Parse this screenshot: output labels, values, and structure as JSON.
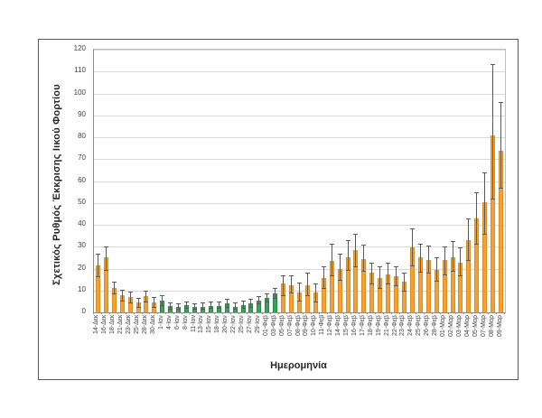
{
  "figure": {
    "y_axis_title": "Σχετικός Ρυθμός Έκκρισης Ιικού Φορτίου",
    "x_axis_title": "Ημερομηνία"
  },
  "chart_data": {
    "type": "bar",
    "title": "",
    "ylabel": "Σχετικός Ρυθμός Έκκρισης Ιικού Φορτίου",
    "xlabel": "Ημερομηνία",
    "ylim": [
      0,
      120
    ],
    "ytick_step": 10,
    "yticks": [
      0,
      10,
      20,
      30,
      40,
      50,
      60,
      70,
      80,
      90,
      100,
      110,
      120
    ],
    "grid": true,
    "legend": "none",
    "error_bars": true,
    "series_colors": {
      "orange": "#f2a136",
      "green": "#35a656"
    },
    "categories": [
      "14-Δεκ",
      "16-Δεκ",
      "18-Δεκ",
      "21-Δεκ",
      "23-Δεκ",
      "25-Δεκ",
      "28-Δεκ",
      "30-Δεκ",
      "1-Ιαν",
      "4-Ιαν",
      "6-Ιαν",
      "8-Ιαν",
      "11-Ιαν",
      "13-Ιαν",
      "15-Ιαν",
      "18-Ιαν",
      "20-Ιαν",
      "22-Ιαν",
      "25-Ιαν",
      "27-Ιαν",
      "29-Ιαν",
      "01-Φεβ",
      "03-Φεβ",
      "05-Φεβ",
      "07-Φεβ",
      "08-Φεβ",
      "09-Φεβ",
      "10-Φεβ",
      "11-Φεβ",
      "12-Φεβ",
      "14-Φεβ",
      "15-Φεβ",
      "16-Φεβ",
      "17-Φεβ",
      "18-Φεβ",
      "19-Φεβ",
      "21-Φεβ",
      "22-Φεβ",
      "23-Φεβ",
      "24-Φεβ",
      "25-Φεβ",
      "26-Φεβ",
      "28-Φεβ",
      "01-Μαρ",
      "02-Μαρ",
      "03-Μαρ",
      "04-Μαρ",
      "05-Μαρ",
      "07-Μαρ",
      "08-Μαρ",
      "09-Μαρ"
    ],
    "values": [
      21.5,
      25,
      11,
      8,
      7,
      4.5,
      7.5,
      4.5,
      5.5,
      3,
      2.5,
      3.5,
      2.5,
      2.5,
      3,
      3,
      4,
      2.5,
      3.5,
      4,
      5.5,
      6.5,
      8.5,
      13,
      12.5,
      9,
      12.5,
      9,
      15.5,
      23.5,
      20,
      25,
      28.5,
      24.5,
      18,
      15.5,
      17.5,
      16.5,
      14,
      29.5,
      25,
      24,
      19.5,
      24,
      25,
      22.5,
      33,
      43,
      50.5,
      81,
      74
    ],
    "error_low": [
      16.5,
      19.5,
      8.5,
      5.5,
      4.5,
      2.5,
      5,
      2.5,
      3.5,
      1.5,
      1.5,
      2,
      1.5,
      1.5,
      2,
      2,
      2.5,
      1.5,
      2,
      2.5,
      4,
      5,
      6.5,
      8,
      9,
      5.5,
      8,
      5,
      11,
      17,
      15,
      19.5,
      21,
      19,
      13,
      11,
      13,
      12.5,
      10,
      21.5,
      18.5,
      18,
      14.5,
      17.5,
      19,
      17,
      24,
      31.5,
      36,
      52,
      57
    ],
    "error_high": [
      27,
      30,
      14,
      10.5,
      9.5,
      6.5,
      10,
      7,
      8,
      4.5,
      4,
      5,
      4,
      4.5,
      5,
      5,
      6,
      4.5,
      5.5,
      6,
      7.5,
      8.5,
      11,
      17,
      17,
      13.5,
      18,
      13,
      21,
      31.5,
      27,
      33,
      36,
      31,
      22.5,
      21,
      22.5,
      21,
      18,
      38.5,
      31.5,
      30.5,
      25,
      30,
      32.5,
      29.5,
      43,
      55,
      64,
      113.5,
      96
    ],
    "groups": [
      "orange",
      "orange",
      "orange",
      "orange",
      "orange",
      "orange",
      "orange",
      "orange",
      "green",
      "green",
      "green",
      "green",
      "green",
      "green",
      "green",
      "green",
      "green",
      "green",
      "green",
      "green",
      "green",
      "green",
      "green",
      "orange",
      "orange",
      "orange",
      "orange",
      "orange",
      "orange",
      "orange",
      "orange",
      "orange",
      "orange",
      "orange",
      "orange",
      "orange",
      "orange",
      "orange",
      "orange",
      "orange",
      "orange",
      "orange",
      "orange",
      "orange",
      "orange",
      "orange",
      "orange",
      "orange",
      "orange",
      "orange",
      "orange"
    ]
  }
}
